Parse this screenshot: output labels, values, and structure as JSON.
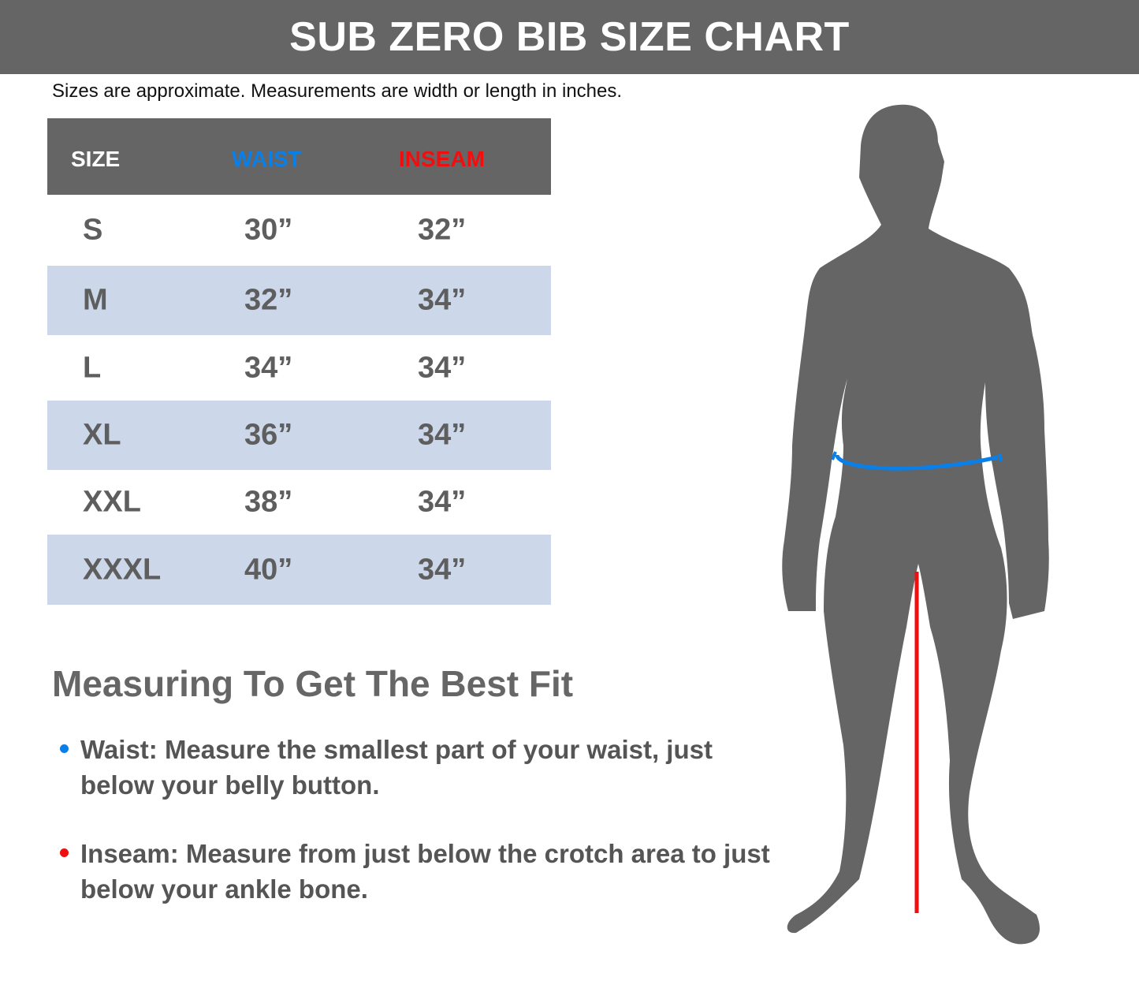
{
  "title": "SUB ZERO BIB SIZE CHART",
  "subtitle": "Sizes are approximate. Measurements are width or length in inches.",
  "table": {
    "headers": [
      "SIZE",
      "WAIST",
      "INSEAM"
    ],
    "rows": [
      [
        "S",
        "30”",
        "32”"
      ],
      [
        "M",
        "32”",
        "34”"
      ],
      [
        "L",
        "34”",
        "34”"
      ],
      [
        "XL",
        "36”",
        "34”"
      ],
      [
        "XXL",
        "38”",
        "34”"
      ],
      [
        "XXXL",
        "40”",
        "34”"
      ]
    ]
  },
  "measuring": {
    "title": "Measuring To Get The Best Fit",
    "waist": "Waist: Measure the smallest part of your waist, just below your belly button.",
    "inseam": "Inseam: Measure from just below the crotch area to just below your ankle bone."
  },
  "colors": {
    "waist": "#0a7fe8",
    "inseam": "#f20e0e",
    "header": "#656565",
    "row_alt": "#ccd8ea",
    "figure": "#656565"
  }
}
